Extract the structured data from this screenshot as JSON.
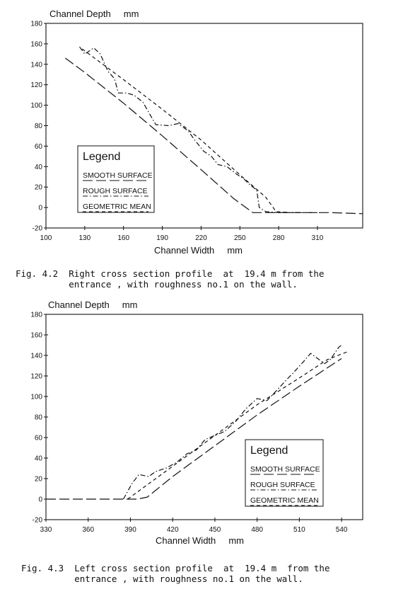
{
  "chart_data": [
    {
      "type": "line",
      "ylabel": "Channel Depth     mm",
      "xlabel": "Channel Width     mm",
      "xlim": [
        100,
        345
      ],
      "ylim": [
        -20,
        180
      ],
      "xticks": [
        "100",
        "130",
        "160",
        "190",
        "220",
        "250",
        "280",
        "310"
      ],
      "yticks": [
        "-20",
        "0",
        "20",
        "40",
        "60",
        "80",
        "100",
        "120",
        "140",
        "160",
        "180"
      ],
      "grid": false,
      "legend_position": "center-left",
      "legend": {
        "title": "Legend",
        "items": [
          "SMOOTH SURFACE",
          "ROUGH SURFACE",
          "GEOMETRIC MEAN"
        ]
      },
      "series": [
        {
          "name": "SMOOTH SURFACE",
          "dash": "long-dash",
          "x": [
            115,
            130,
            160,
            190,
            220,
            245,
            260,
            290,
            320,
            345
          ],
          "y": [
            146,
            132,
            102,
            70,
            37,
            9,
            -5,
            -5,
            -5,
            -6
          ]
        },
        {
          "name": "ROUGH SURFACE",
          "dash": "dash-dot",
          "x": [
            126,
            130,
            137,
            142,
            148,
            153,
            156,
            162,
            168,
            175,
            185,
            195,
            202,
            210,
            215,
            222,
            228,
            233,
            240,
            247,
            253,
            258,
            263,
            265,
            270,
            280,
            300
          ],
          "y": [
            157,
            150,
            156,
            150,
            133,
            126,
            112,
            112,
            110,
            103,
            81,
            80,
            82,
            75,
            66,
            55,
            50,
            42,
            40,
            33,
            28,
            22,
            17,
            0,
            -4,
            -5,
            -5
          ]
        },
        {
          "name": "GEOMETRIC MEAN",
          "dash": "short-dash",
          "x": [
            128,
            160,
            190,
            220,
            250,
            270,
            278,
            290,
            310
          ],
          "y": [
            155,
            125,
            96,
            66,
            32,
            10,
            -4,
            -5,
            -5
          ]
        }
      ],
      "caption": "Fig. 4.2  Right cross section profile  at  19.4 m from the\n          entrance , with roughness no.1 on the wall."
    },
    {
      "type": "line",
      "ylabel": "Channel Depth     mm",
      "xlabel": "Channel Width     mm",
      "xlim": [
        330,
        555
      ],
      "ylim": [
        -20,
        180
      ],
      "xticks": [
        "330",
        "360",
        "390",
        "420",
        "450",
        "480",
        "510",
        "540"
      ],
      "yticks": [
        "-20",
        "0",
        "20",
        "40",
        "60",
        "80",
        "100",
        "120",
        "140",
        "160",
        "180"
      ],
      "grid": false,
      "legend_position": "lower-right",
      "legend": {
        "title": "Legend",
        "items": [
          "SMOOTH SURFACE",
          "ROUGH SURFACE",
          "GEOMETRIC MEAN"
        ]
      },
      "series": [
        {
          "name": "SMOOTH SURFACE",
          "dash": "long-dash",
          "x": [
            330,
            360,
            385,
            395,
            402,
            420,
            450,
            480,
            510,
            540
          ],
          "y": [
            0,
            0,
            0,
            0,
            2,
            22,
            52,
            82,
            110,
            137
          ]
        },
        {
          "name": "ROUGH SURFACE",
          "dash": "dash-dot",
          "x": [
            385,
            391,
            396,
            403,
            408,
            415,
            423,
            430,
            437,
            443,
            450,
            457,
            465,
            472,
            480,
            487,
            494,
            500,
            507,
            513,
            518,
            523,
            528,
            532,
            538,
            540
          ],
          "y": [
            0,
            15,
            24,
            22,
            27,
            30,
            36,
            44,
            48,
            58,
            62,
            66,
            76,
            88,
            98,
            96,
            106,
            115,
            125,
            134,
            142,
            137,
            132,
            136,
            148,
            150
          ]
        },
        {
          "name": "GEOMETRIC MEAN",
          "dash": "short-dash",
          "x": [
            388,
            398,
            420,
            450,
            480,
            510,
            530,
            545
          ],
          "y": [
            0,
            10,
            32,
            62,
            92,
            118,
            136,
            144
          ]
        }
      ],
      "caption": "Fig. 4.3  Left cross section profile  at  19.4 m  from the\n          entrance , with roughness no.1 on the wall."
    }
  ]
}
